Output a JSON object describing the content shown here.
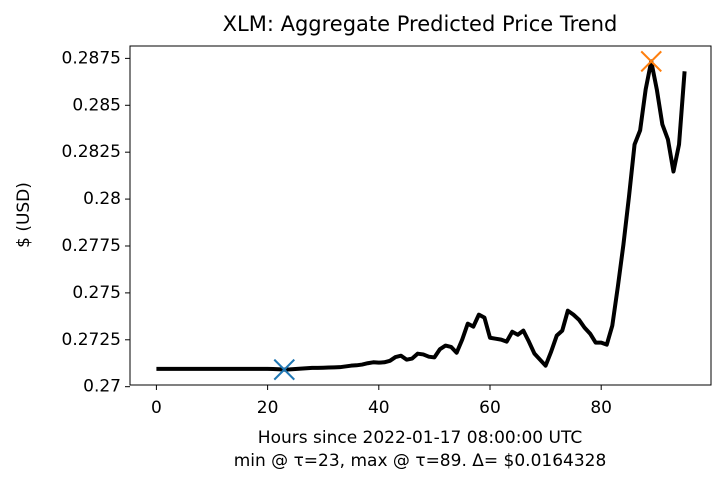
{
  "chart_data": {
    "type": "line",
    "title": "XLM: Aggregate Predicted Price Trend",
    "xlabel": "Hours since 2022-01-17 08:00:00 UTC",
    "xlabel_note": "min @ τ=23, max @ τ=89. Δ= $0.0164328",
    "ylabel": "$ (USD)",
    "x": [
      0,
      1,
      2,
      3,
      4,
      5,
      6,
      7,
      8,
      9,
      10,
      11,
      12,
      13,
      14,
      15,
      16,
      17,
      18,
      19,
      20,
      21,
      22,
      23,
      24,
      25,
      26,
      27,
      28,
      29,
      30,
      31,
      32,
      33,
      34,
      35,
      36,
      37,
      38,
      39,
      40,
      41,
      42,
      43,
      44,
      45,
      46,
      47,
      48,
      49,
      50,
      51,
      52,
      53,
      54,
      55,
      56,
      57,
      58,
      59,
      60,
      61,
      62,
      63,
      64,
      65,
      66,
      67,
      68,
      69,
      70,
      71,
      72,
      73,
      74,
      75,
      76,
      77,
      78,
      79,
      80,
      81,
      82,
      83,
      84,
      85,
      86,
      87,
      88,
      89,
      90,
      91,
      92,
      93,
      94,
      95
    ],
    "series": [
      {
        "color": "#000000",
        "values": [
          0.27095,
          0.27095,
          0.27095,
          0.27095,
          0.27095,
          0.27095,
          0.27095,
          0.27095,
          0.27095,
          0.27095,
          0.27095,
          0.27095,
          0.27095,
          0.27095,
          0.27095,
          0.27095,
          0.27095,
          0.27095,
          0.27095,
          0.27095,
          0.27095,
          0.27094,
          0.27093,
          0.27091,
          0.27092,
          0.27094,
          0.27096,
          0.27098,
          0.271,
          0.271,
          0.27101,
          0.27102,
          0.27103,
          0.27104,
          0.27108,
          0.27112,
          0.27114,
          0.27118,
          0.27125,
          0.2713,
          0.27128,
          0.2713,
          0.27138,
          0.27158,
          0.27165,
          0.27144,
          0.2715,
          0.27176,
          0.27172,
          0.2716,
          0.27156,
          0.272,
          0.27219,
          0.27212,
          0.27181,
          0.27251,
          0.27336,
          0.2732,
          0.27384,
          0.27368,
          0.27261,
          0.27256,
          0.27251,
          0.2724,
          0.27293,
          0.27277,
          0.27299,
          0.2724,
          0.27176,
          0.27144,
          0.27112,
          0.27187,
          0.27272,
          0.27299,
          0.27405,
          0.27384,
          0.27357,
          0.27315,
          0.27283,
          0.27235,
          0.27235,
          0.27224,
          0.27326,
          0.27534,
          0.27758,
          0.28014,
          0.28291,
          0.28366,
          0.28585,
          0.28734,
          0.28585,
          0.28398,
          0.28318,
          0.28147,
          0.28291,
          0.28681
        ]
      }
    ],
    "markers": [
      {
        "x": 23,
        "color": "#1f77b4"
      },
      {
        "x": 89,
        "color": "#ff7f0e"
      }
    ],
    "xlim": [
      -4.75,
      99.75
    ],
    "xticks": [
      0,
      20,
      40,
      60,
      80
    ],
    "ylim": [
      0.27009,
      0.28816
    ],
    "yticks": [
      0.27,
      0.2725,
      0.275,
      0.2775,
      0.28,
      0.2825,
      0.285,
      0.2875
    ]
  }
}
